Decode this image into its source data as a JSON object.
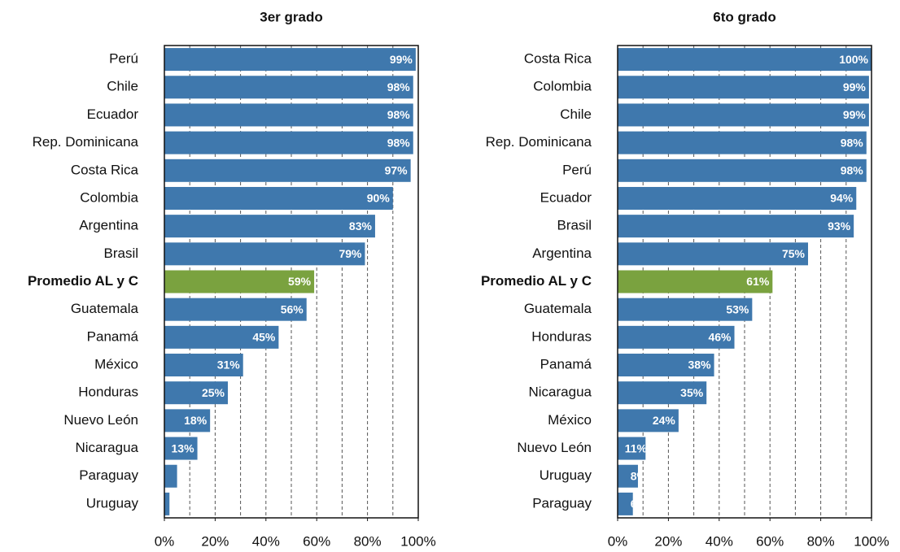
{
  "chart_data": [
    {
      "type": "bar",
      "orientation": "horizontal",
      "title": "3er grado",
      "categories": [
        "Perú",
        "Chile",
        "Ecuador",
        "Rep. Dominicana",
        "Costa Rica",
        "Colombia",
        "Argentina",
        "Brasil",
        "Promedio AL y C",
        "Guatemala",
        "Panamá",
        "México",
        "Honduras",
        "Nuevo León",
        "Nicaragua",
        "Paraguay",
        "Uruguay"
      ],
      "values": [
        99,
        98,
        98,
        98,
        97,
        90,
        83,
        79,
        59,
        56,
        45,
        31,
        25,
        18,
        13,
        5,
        2
      ],
      "value_labels": [
        "99%",
        "98%",
        "98%",
        "98%",
        "97%",
        "90%",
        "83%",
        "79%",
        "59%",
        "56%",
        "45%",
        "31%",
        "25%",
        "18%",
        "13%",
        "5%",
        null
      ],
      "color": "#3f78ad",
      "colors": [
        "#3f78ad",
        "#3f78ad",
        "#3f78ad",
        "#3f78ad",
        "#3f78ad",
        "#3f78ad",
        "#3f78ad",
        "#3f78ad",
        "#7aa23f",
        "#3f78ad",
        "#3f78ad",
        "#3f78ad",
        "#3f78ad",
        "#3f78ad",
        "#3f78ad",
        "#3f78ad",
        "#3f78ad"
      ],
      "xlim": [
        0,
        100
      ],
      "xticks": [
        {
          "value": 0,
          "label": "0%"
        },
        {
          "value": 20,
          "label": "20%"
        },
        {
          "value": 40,
          "label": "40%"
        },
        {
          "value": 60,
          "label": "60%"
        },
        {
          "value": 80,
          "label": "80%"
        },
        {
          "value": 100,
          "label": "100%"
        }
      ],
      "xgrid": [
        10,
        20,
        30,
        40,
        50,
        60,
        70,
        80,
        90
      ],
      "grid": true
    },
    {
      "type": "bar",
      "orientation": "horizontal",
      "title": "6to grado",
      "categories": [
        "Costa Rica",
        "Colombia",
        "Chile",
        "Rep. Dominicana",
        "Perú",
        "Ecuador",
        "Brasil",
        "Argentina",
        "Promedio AL y C",
        "Guatemala",
        "Honduras",
        "Panamá",
        "Nicaragua",
        "México",
        "Nuevo León",
        "Uruguay",
        "Paraguay"
      ],
      "values": [
        100,
        99,
        99,
        98,
        98,
        94,
        93,
        75,
        61,
        53,
        46,
        38,
        35,
        24,
        11,
        8,
        6
      ],
      "value_labels": [
        "100%",
        "99%",
        "99%",
        "98%",
        "98%",
        "94%",
        "93%",
        "75%",
        "61%",
        "53%",
        "46%",
        "38%",
        "35%",
        "24%",
        "11%",
        "8%",
        "6%"
      ],
      "color": "#3f78ad",
      "colors": [
        "#3f78ad",
        "#3f78ad",
        "#3f78ad",
        "#3f78ad",
        "#3f78ad",
        "#3f78ad",
        "#3f78ad",
        "#3f78ad",
        "#7aa23f",
        "#3f78ad",
        "#3f78ad",
        "#3f78ad",
        "#3f78ad",
        "#3f78ad",
        "#3f78ad",
        "#3f78ad",
        "#3f78ad"
      ],
      "xlim": [
        0,
        100
      ],
      "xticks": [
        {
          "value": 0,
          "label": "0%"
        },
        {
          "value": 20,
          "label": "20%"
        },
        {
          "value": 40,
          "label": "40%"
        },
        {
          "value": 60,
          "label": "60%"
        },
        {
          "value": 80,
          "label": "80%"
        },
        {
          "value": 100,
          "label": "100%"
        }
      ],
      "xgrid": [
        10,
        20,
        30,
        40,
        50,
        60,
        70,
        80,
        90
      ],
      "grid": true
    }
  ]
}
